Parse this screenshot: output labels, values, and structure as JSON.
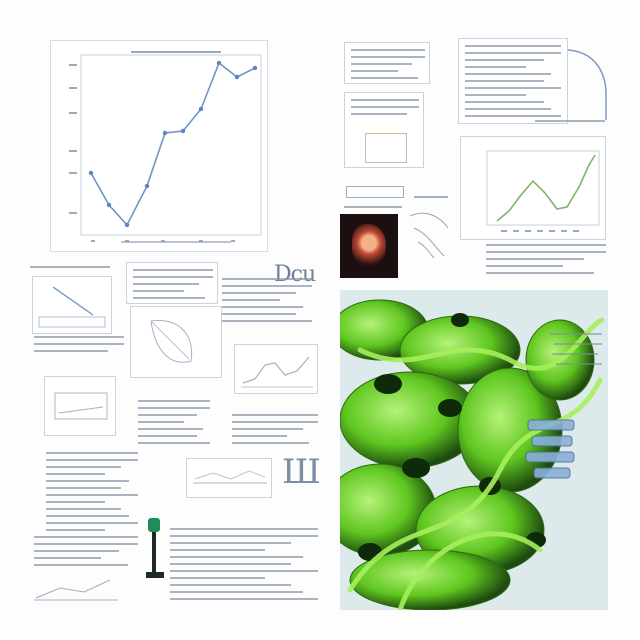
{
  "main_chart": {
    "title": "",
    "y_tick_labels": [
      "",
      "",
      "",
      "",
      "",
      ""
    ],
    "x_tick_labels": [
      "",
      "",
      "",
      "",
      "",
      ""
    ],
    "accent": "#6f95c8"
  },
  "headline_fragment": "Dcu",
  "panel_glyph": "Ш",
  "protein_render": {
    "primary_color": "#6fd12a",
    "background": "#e9f1f3"
  },
  "icons": [
    "chart-icon",
    "document-icon",
    "image-icon"
  ]
}
